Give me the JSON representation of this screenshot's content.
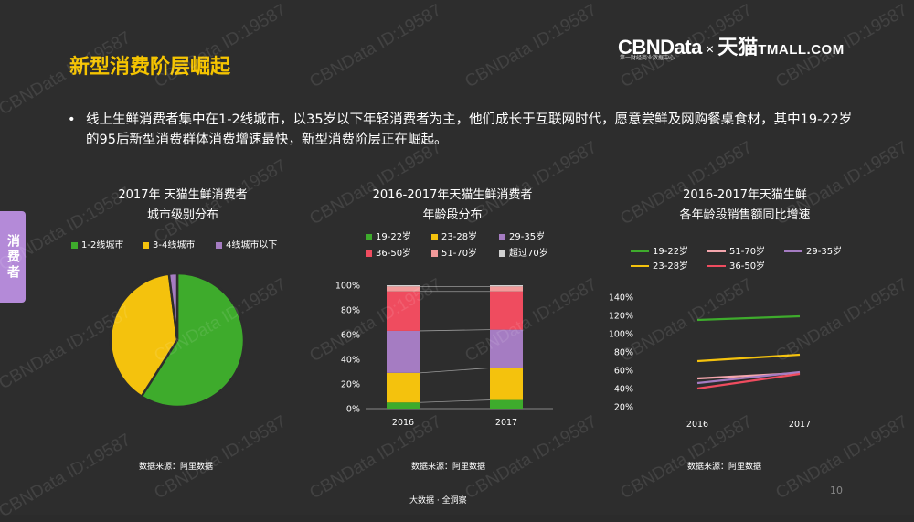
{
  "slide": {
    "title": "新型消费阶层崛起",
    "logo": {
      "cbn": "CBNData",
      "x": "×",
      "tm": "天猫",
      "tmall": "TMALL.COM",
      "sub": "第一财经商业数据中心"
    },
    "bullet_dot": "•",
    "bullet": "线上生鲜消费者集中在1-2线城市，以35岁以下年轻消费者为主，他们成长于互联网时代，愿意尝鲜及网购餐桌食材，其中19-22岁的95后新型消费群体消费增速最快，新型消费阶层正在崛起。",
    "side_tab": "消费者",
    "footer": "大数据 · 全洞察",
    "page_number": "10",
    "watermark": "CBNData ID:19587",
    "source": "数据来源：阿里数据",
    "colors": {
      "accent": "#f5c400",
      "tab": "#b48ad8"
    }
  },
  "chart_data": [
    {
      "type": "pie",
      "title_line1": "2017年 天猫生鲜消费者",
      "title_line2": "城市级别分布",
      "categories": [
        "1-2线城市",
        "3-4线城市",
        "4线城市以下"
      ],
      "values": [
        59,
        39,
        2
      ],
      "colors": [
        "#3eab2c",
        "#f4c20d",
        "#a57cc2"
      ]
    },
    {
      "type": "bar",
      "stacked": true,
      "title_line1": "2016-2017年天猫生鲜消费者",
      "title_line2": "年龄段分布",
      "categories": [
        "2016",
        "2017"
      ],
      "series": [
        {
          "name": "19-22岁",
          "values": [
            5,
            7
          ],
          "color": "#3eab2c"
        },
        {
          "name": "23-28岁",
          "values": [
            24,
            26
          ],
          "color": "#f4c20d"
        },
        {
          "name": "29-35岁",
          "values": [
            34,
            31
          ],
          "color": "#a57cc2"
        },
        {
          "name": "36-50岁",
          "values": [
            32,
            31
          ],
          "color": "#ef4c5f"
        },
        {
          "name": "51-70岁",
          "values": [
            4,
            4
          ],
          "color": "#f29a9a"
        },
        {
          "name": "超过70岁",
          "values": [
            1,
            1
          ],
          "color": "#d0d0d0"
        }
      ],
      "y_ticks": [
        "100%",
        "80%",
        "60%",
        "40%",
        "20%",
        "0%"
      ],
      "ylim": [
        0,
        100
      ]
    },
    {
      "type": "line",
      "title_line1": "2016-2017年天猫生鲜",
      "title_line2": "各年龄段销售额同比增速",
      "x": [
        "2016",
        "2017"
      ],
      "series": [
        {
          "name": "19-22岁",
          "values": [
            115,
            119
          ],
          "color": "#3eab2c"
        },
        {
          "name": "51-70岁",
          "values": [
            51,
            57
          ],
          "color": "#f4a6ad"
        },
        {
          "name": "29-35岁",
          "values": [
            46,
            58
          ],
          "color": "#a57cc2"
        },
        {
          "name": "23-28岁",
          "values": [
            70,
            77
          ],
          "color": "#f4c20d"
        },
        {
          "name": "36-50岁",
          "values": [
            40,
            56
          ],
          "color": "#ef4c5f"
        }
      ],
      "y_ticks": [
        "140%",
        "120%",
        "100%",
        "80%",
        "60%",
        "40%",
        "20%"
      ],
      "ylim": [
        20,
        140
      ]
    }
  ]
}
